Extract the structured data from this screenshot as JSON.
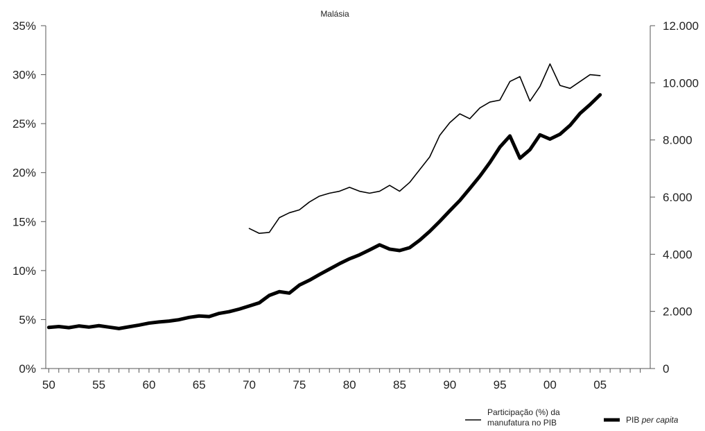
{
  "chart_data": {
    "type": "line",
    "title": "Malásia",
    "x_ticks": [
      "50",
      "55",
      "60",
      "65",
      "70",
      "75",
      "80",
      "85",
      "90",
      "95",
      "00",
      "05"
    ],
    "x_tick_values": [
      1950,
      1955,
      1960,
      1965,
      1970,
      1975,
      1980,
      1985,
      1990,
      1995,
      2000,
      2005
    ],
    "xlim": [
      1949.7,
      2010
    ],
    "y_left": {
      "ticks": [
        "0%",
        "5%",
        "10%",
        "15%",
        "20%",
        "25%",
        "30%",
        "35%"
      ],
      "ylim": [
        0,
        35
      ]
    },
    "y_right": {
      "ticks": [
        "0",
        "2.000",
        "4.000",
        "6.000",
        "8.000",
        "10.000",
        "12.000"
      ],
      "ylim": [
        0,
        12000
      ]
    },
    "grid": false,
    "legend_position": "bottom-right",
    "series": [
      {
        "name_parts": [
          "Participação (%) da",
          "manufatura no PIB"
        ],
        "axis": "left",
        "color": "#000000",
        "style": "thin",
        "x": [
          1970,
          1971,
          1972,
          1973,
          1974,
          1975,
          1976,
          1977,
          1978,
          1979,
          1980,
          1981,
          1982,
          1983,
          1984,
          1985,
          1986,
          1987,
          1988,
          1989,
          1990,
          1991,
          1992,
          1993,
          1994,
          1995,
          1996,
          1997,
          1998,
          1999,
          2000,
          2001,
          2002,
          2003,
          2004,
          2005
        ],
        "y": [
          14.3,
          13.8,
          13.9,
          15.4,
          15.9,
          16.2,
          17.0,
          17.6,
          17.9,
          18.1,
          18.5,
          18.1,
          17.9,
          18.1,
          18.7,
          18.1,
          19.0,
          20.3,
          21.6,
          23.8,
          25.1,
          26.0,
          25.5,
          26.6,
          27.2,
          27.4,
          29.3,
          29.8,
          27.3,
          28.8,
          31.1,
          28.9,
          28.6,
          29.3,
          30.0,
          29.9
        ]
      },
      {
        "name_parts": [
          "PIB ",
          "per capita"
        ],
        "axis": "right",
        "color": "#000000",
        "style": "thick",
        "x": [
          1950,
          1951,
          1952,
          1953,
          1954,
          1955,
          1956,
          1957,
          1958,
          1959,
          1960,
          1961,
          1962,
          1963,
          1964,
          1965,
          1966,
          1967,
          1968,
          1969,
          1970,
          1971,
          1972,
          1973,
          1974,
          1975,
          1976,
          1977,
          1978,
          1979,
          1980,
          1981,
          1982,
          1983,
          1984,
          1985,
          1986,
          1987,
          1988,
          1989,
          1990,
          1991,
          1992,
          1993,
          1994,
          1995,
          1996,
          1997,
          1998,
          1999,
          2000,
          2001,
          2002,
          2003,
          2004,
          2005
        ],
        "y": [
          1440,
          1470,
          1430,
          1490,
          1450,
          1500,
          1450,
          1400,
          1460,
          1520,
          1590,
          1630,
          1660,
          1710,
          1790,
          1840,
          1820,
          1930,
          1990,
          2080,
          2190,
          2300,
          2560,
          2690,
          2640,
          2920,
          3090,
          3290,
          3480,
          3670,
          3840,
          3980,
          4150,
          4330,
          4180,
          4130,
          4230,
          4490,
          4800,
          5150,
          5520,
          5880,
          6300,
          6730,
          7210,
          7750,
          8140,
          7360,
          7660,
          8180,
          8030,
          8200,
          8510,
          8930,
          9240,
          9580
        ]
      }
    ]
  }
}
